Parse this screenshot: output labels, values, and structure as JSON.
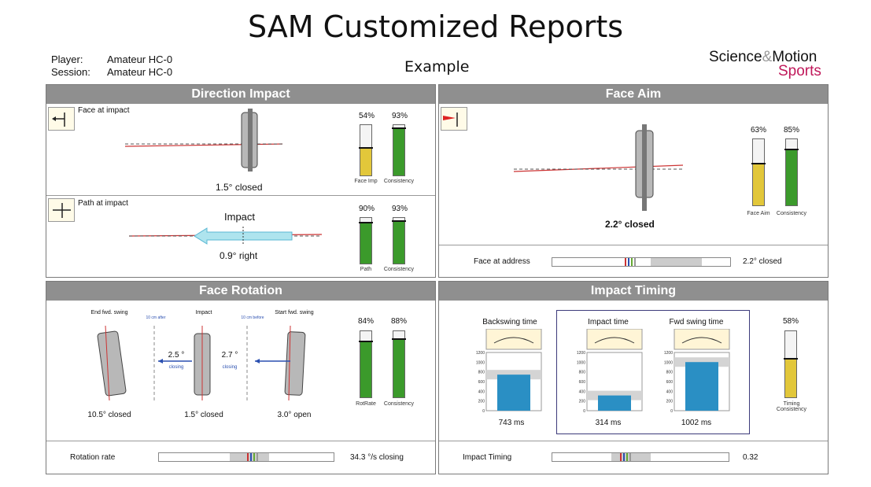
{
  "title": "SAM Customized Reports",
  "header": {
    "player_label": "Player:",
    "player_value": "Amateur HC-0",
    "session_label": "Session:",
    "session_value": "Amateur HC-0",
    "example": "Example",
    "brand1": "Science",
    "brand_amp": "&",
    "brand2": "Motion",
    "brand3": "Sports"
  },
  "direction": {
    "heading": "Direction Impact",
    "face": {
      "label": "Face at impact",
      "value": "1.5° closed",
      "bar1_pct": "54%",
      "bar1_label": "Face Imp",
      "bar1_fill": 0.54,
      "bar2_pct": "93%",
      "bar2_label": "Consistency",
      "bar2_fill": 0.93
    },
    "path": {
      "label": "Path at impact",
      "impact": "Impact",
      "value": "0.9° right",
      "bar1_pct": "90%",
      "bar1_label": "Path",
      "bar1_fill": 0.9,
      "bar2_pct": "93%",
      "bar2_label": "Consistency",
      "bar2_fill": 0.93
    }
  },
  "faceaim": {
    "heading": "Face Aim",
    "value": "2.2° closed",
    "bar1_pct": "63%",
    "bar1_label": "Face Aim",
    "bar1_fill": 0.63,
    "bar2_pct": "85%",
    "bar2_label": "Consistency",
    "bar2_fill": 0.85,
    "address_label": "Face at address",
    "address_value": "2.2° closed"
  },
  "rotation": {
    "heading": "Face Rotation",
    "end_label": "End fwd. swing",
    "impact_label": "Impact",
    "start_label": "Start fwd. swing",
    "after": "10 cm after",
    "before": "10 cm before",
    "rot1": "2.5 °",
    "rot1_sub": "closing",
    "rot2": "2.7 °",
    "rot2_sub": "closing",
    "end_value": "10.5° closed",
    "impact_value": "1.5° closed",
    "start_value": "3.0° open",
    "bar1_pct": "84%",
    "bar1_label": "RotRate",
    "bar1_fill": 0.84,
    "bar2_pct": "88%",
    "bar2_label": "Consistency",
    "bar2_fill": 0.88,
    "rate_label": "Rotation rate",
    "rate_value": "34.3 °/s closing"
  },
  "timing": {
    "heading": "Impact Timing",
    "back_label": "Backswing time",
    "impact_label": "Impact time",
    "fwd_label": "Fwd swing time",
    "back_value": "743 ms",
    "impact_value": "314 ms",
    "fwd_value": "1002 ms",
    "back_ms": 743,
    "impact_ms": 314,
    "fwd_ms": 1002,
    "yticks": [
      "1200",
      "1000",
      "800",
      "600",
      "400",
      "200",
      "0"
    ],
    "bar_pct": "58%",
    "bar_fill": 0.58,
    "bar_label": "Timing Consistency",
    "timing_label": "Impact Timing",
    "timing_value": "0.32"
  },
  "colors": {
    "yellow": "#e2c73a",
    "green": "#3b9a2b",
    "blue": "#2a8fc4",
    "header": "#8f8f8f",
    "brand_red": "#c0185a"
  }
}
